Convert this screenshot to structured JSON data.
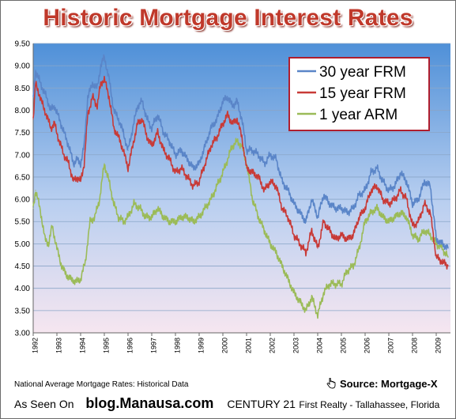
{
  "title": "Historic Mortgage Interest Rates",
  "footer": {
    "note": "National Average Mortgage Rates: Historical Data",
    "source": "Source: Mortgage-X",
    "as_seen_on": "As Seen On",
    "blog": "blog.Manausa.com",
    "brand": "CENTURY 21",
    "brand_tail": "First Realty - Tallahassee, Florida"
  },
  "colors": {
    "frm30": "#5a85c8",
    "frm15": "#c83a37",
    "arm1": "#9bbb58",
    "title": "#c0392b",
    "legend_border": "#b01e2e",
    "plot_top": "#4f90d8",
    "plot_bottom": "#f6e6f0"
  },
  "icons": [
    "hand-pointer-icon"
  ],
  "chart_data": {
    "type": "line",
    "title": "Historic Mortgage Interest Rates",
    "xlabel": "",
    "ylabel": "",
    "ylim": [
      3.0,
      9.5
    ],
    "xlim": [
      1992.0,
      2009.6
    ],
    "grid": "horizontal",
    "legend_position": "top-right",
    "x_ticks": [
      "1992",
      "1993",
      "1994",
      "1995",
      "1996",
      "1997",
      "1998",
      "1999",
      "2000",
      "2001",
      "2002",
      "2003",
      "2004",
      "2005",
      "2006",
      "2007",
      "2008",
      "2009"
    ],
    "y_ticks": [
      "3.00",
      "3.50",
      "4.00",
      "4.50",
      "5.00",
      "5.50",
      "6.00",
      "6.50",
      "7.00",
      "7.50",
      "8.00",
      "8.50",
      "9.00",
      "9.50"
    ],
    "series": [
      {
        "name": "30 year FRM",
        "color": "#5a85c8",
        "x": [
          1992.0,
          1992.1,
          1992.2,
          1992.35,
          1992.55,
          1992.75,
          1992.9,
          1993.1,
          1993.3,
          1993.5,
          1993.7,
          1993.85,
          1994.0,
          1994.15,
          1994.3,
          1994.5,
          1994.7,
          1994.85,
          1995.0,
          1995.2,
          1995.4,
          1995.6,
          1995.8,
          1996.0,
          1996.2,
          1996.4,
          1996.6,
          1996.8,
          1997.0,
          1997.25,
          1997.5,
          1997.75,
          1998.0,
          1998.25,
          1998.5,
          1998.75,
          1999.0,
          1999.25,
          1999.5,
          1999.75,
          2000.0,
          2000.2,
          2000.4,
          2000.6,
          2000.8,
          2001.0,
          2001.25,
          2001.5,
          2001.75,
          2002.0,
          2002.25,
          2002.5,
          2002.75,
          2003.0,
          2003.25,
          2003.5,
          2003.75,
          2004.0,
          2004.25,
          2004.5,
          2004.75,
          2005.0,
          2005.25,
          2005.5,
          2005.75,
          2006.0,
          2006.25,
          2006.5,
          2006.75,
          2007.0,
          2007.25,
          2007.5,
          2007.75,
          2008.0,
          2008.25,
          2008.5,
          2008.75,
          2009.0,
          2009.25,
          2009.5
        ],
        "values": [
          8.3,
          8.9,
          8.75,
          8.55,
          8.3,
          8.0,
          8.1,
          7.8,
          7.5,
          7.2,
          6.8,
          6.9,
          6.8,
          7.2,
          8.3,
          8.6,
          8.5,
          9.0,
          9.2,
          8.7,
          8.0,
          7.8,
          7.5,
          7.1,
          7.6,
          8.1,
          8.2,
          7.8,
          7.6,
          7.9,
          7.5,
          7.3,
          7.0,
          7.1,
          6.9,
          6.7,
          6.8,
          7.2,
          7.6,
          7.8,
          8.2,
          8.3,
          8.1,
          8.2,
          7.8,
          7.1,
          7.1,
          7.0,
          6.8,
          7.0,
          6.9,
          6.4,
          6.2,
          5.9,
          5.7,
          5.5,
          6.0,
          5.6,
          6.1,
          5.9,
          5.8,
          5.8,
          5.7,
          5.8,
          6.1,
          6.2,
          6.6,
          6.7,
          6.4,
          6.2,
          6.3,
          6.6,
          6.4,
          5.9,
          6.0,
          6.4,
          6.3,
          5.1,
          5.0,
          4.9
        ]
      },
      {
        "name": "15 year FRM",
        "color": "#c83a37",
        "x": [
          1992.0,
          1992.1,
          1992.2,
          1992.35,
          1992.55,
          1992.75,
          1992.9,
          1993.1,
          1993.3,
          1993.5,
          1993.7,
          1993.85,
          1994.0,
          1994.15,
          1994.3,
          1994.5,
          1994.7,
          1994.85,
          1995.0,
          1995.2,
          1995.4,
          1995.6,
          1995.8,
          1996.0,
          1996.2,
          1996.4,
          1996.6,
          1996.8,
          1997.0,
          1997.25,
          1997.5,
          1997.75,
          1998.0,
          1998.25,
          1998.5,
          1998.75,
          1999.0,
          1999.25,
          1999.5,
          1999.75,
          2000.0,
          2000.2,
          2000.4,
          2000.6,
          2000.8,
          2001.0,
          2001.25,
          2001.5,
          2001.75,
          2002.0,
          2002.25,
          2002.5,
          2002.75,
          2003.0,
          2003.25,
          2003.5,
          2003.75,
          2004.0,
          2004.25,
          2004.5,
          2004.75,
          2005.0,
          2005.25,
          2005.5,
          2005.75,
          2006.0,
          2006.25,
          2006.5,
          2006.75,
          2007.0,
          2007.25,
          2007.5,
          2007.75,
          2008.0,
          2008.25,
          2008.5,
          2008.75,
          2009.0,
          2009.25,
          2009.5
        ],
        "values": [
          7.8,
          8.6,
          8.45,
          8.2,
          7.9,
          7.6,
          7.7,
          7.3,
          7.0,
          6.8,
          6.4,
          6.5,
          6.4,
          6.8,
          7.9,
          8.3,
          8.1,
          8.6,
          8.7,
          8.3,
          7.6,
          7.4,
          7.1,
          6.7,
          7.2,
          7.7,
          7.8,
          7.4,
          7.2,
          7.5,
          7.1,
          6.9,
          6.6,
          6.7,
          6.5,
          6.3,
          6.4,
          6.8,
          7.2,
          7.4,
          7.7,
          7.9,
          7.7,
          7.8,
          7.4,
          6.7,
          6.6,
          6.5,
          6.2,
          6.4,
          6.3,
          5.8,
          5.6,
          5.2,
          5.0,
          4.8,
          5.3,
          4.9,
          5.5,
          5.3,
          5.1,
          5.2,
          5.1,
          5.2,
          5.6,
          5.8,
          6.2,
          6.3,
          6.0,
          5.9,
          6.0,
          6.2,
          6.0,
          5.4,
          5.5,
          5.9,
          5.7,
          4.7,
          4.6,
          4.5
        ]
      },
      {
        "name": "1 year ARM",
        "color": "#9bbb58",
        "x": [
          1992.0,
          1992.1,
          1992.2,
          1992.35,
          1992.5,
          1992.65,
          1992.8,
          1993.0,
          1993.2,
          1993.4,
          1993.6,
          1993.8,
          1994.0,
          1994.2,
          1994.4,
          1994.6,
          1994.8,
          1995.0,
          1995.2,
          1995.4,
          1995.6,
          1995.8,
          1996.0,
          1996.25,
          1996.5,
          1996.75,
          1997.0,
          1997.25,
          1997.5,
          1997.75,
          1998.0,
          1998.25,
          1998.5,
          1998.75,
          1999.0,
          1999.25,
          1999.5,
          1999.75,
          2000.0,
          2000.2,
          2000.4,
          2000.6,
          2000.8,
          2001.0,
          2001.25,
          2001.5,
          2001.75,
          2002.0,
          2002.25,
          2002.5,
          2002.75,
          2003.0,
          2003.25,
          2003.5,
          2003.75,
          2004.0,
          2004.25,
          2004.5,
          2004.75,
          2005.0,
          2005.25,
          2005.5,
          2005.75,
          2006.0,
          2006.25,
          2006.5,
          2006.75,
          2007.0,
          2007.25,
          2007.5,
          2007.75,
          2008.0,
          2008.25,
          2008.5,
          2008.75,
          2009.0,
          2009.25,
          2009.5
        ],
        "values": [
          5.8,
          6.2,
          6.0,
          5.6,
          5.1,
          5.0,
          5.4,
          4.9,
          4.5,
          4.3,
          4.2,
          4.15,
          4.2,
          4.6,
          5.5,
          5.6,
          6.0,
          6.8,
          6.4,
          5.9,
          5.6,
          5.5,
          5.6,
          5.9,
          5.8,
          5.6,
          5.6,
          5.8,
          5.6,
          5.5,
          5.5,
          5.6,
          5.6,
          5.5,
          5.6,
          5.8,
          6.0,
          6.3,
          6.6,
          6.9,
          7.2,
          7.3,
          7.2,
          6.8,
          6.0,
          5.6,
          5.3,
          5.0,
          4.8,
          4.5,
          4.2,
          3.9,
          3.7,
          3.5,
          3.8,
          3.4,
          3.9,
          4.1,
          4.1,
          4.1,
          4.4,
          4.5,
          4.9,
          5.5,
          5.7,
          5.8,
          5.6,
          5.5,
          5.6,
          5.7,
          5.6,
          5.2,
          5.1,
          5.3,
          5.2,
          5.0,
          4.9,
          4.7
        ]
      }
    ]
  }
}
